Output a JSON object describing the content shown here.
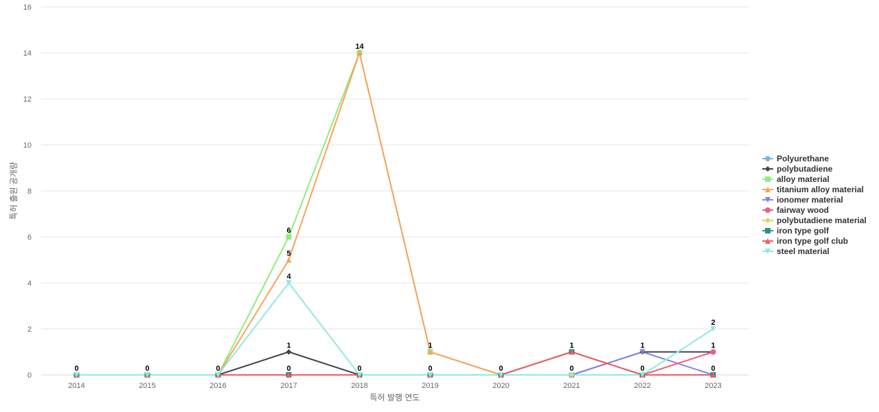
{
  "chart_data": {
    "type": "line",
    "xlabel": "특허 발행 연도",
    "ylabel": "특허 출원 공개량",
    "ylim": [
      0,
      16
    ],
    "yticks": [
      0,
      2,
      4,
      6,
      8,
      10,
      12,
      14,
      16
    ],
    "grid": true,
    "legend_position": "right",
    "categories": [
      "2014",
      "2015",
      "2016",
      "2017",
      "2018",
      "2019",
      "2020",
      "2021",
      "2022",
      "2023"
    ],
    "series": [
      {
        "name": "Polyurethane",
        "color": "#7cb5ec",
        "marker": "circle",
        "values": [
          0,
          0,
          0,
          0,
          0,
          0,
          0,
          0,
          0,
          0
        ]
      },
      {
        "name": "polybutadiene",
        "color": "#434348",
        "marker": "diamond",
        "values": [
          0,
          0,
          0,
          1,
          0,
          0,
          0,
          0,
          1,
          1
        ]
      },
      {
        "name": "alloy material",
        "color": "#90ed7d",
        "marker": "square",
        "values": [
          0,
          0,
          0,
          6,
          14,
          1,
          0,
          0,
          0,
          0
        ]
      },
      {
        "name": "titanium alloy material",
        "color": "#f7a35c",
        "marker": "triangle",
        "values": [
          0,
          0,
          0,
          5,
          14,
          1,
          0,
          0,
          0,
          0
        ]
      },
      {
        "name": "ionomer material",
        "color": "#8085e9",
        "marker": "triangle-down",
        "values": [
          0,
          0,
          0,
          0,
          0,
          0,
          0,
          0,
          1,
          0
        ]
      },
      {
        "name": "fairway wood",
        "color": "#f15c80",
        "marker": "circle",
        "values": [
          0,
          0,
          0,
          0,
          0,
          0,
          0,
          0,
          0,
          1
        ]
      },
      {
        "name": "polybutadiene material",
        "color": "#e4d354",
        "marker": "diamond",
        "values": [
          0,
          0,
          0,
          0,
          0,
          0,
          0,
          0,
          0,
          0
        ]
      },
      {
        "name": "iron type golf",
        "color": "#2b908f",
        "marker": "square",
        "values": [
          0,
          0,
          0,
          0,
          0,
          0,
          0,
          1,
          0,
          0
        ]
      },
      {
        "name": "iron type golf club",
        "color": "#f45b5b",
        "marker": "triangle",
        "values": [
          0,
          0,
          0,
          0,
          0,
          0,
          0,
          1,
          0,
          0
        ]
      },
      {
        "name": "steel material",
        "color": "#91e8e1",
        "marker": "triangle-down",
        "values": [
          0,
          0,
          0,
          4,
          0,
          0,
          0,
          0,
          0,
          2
        ]
      }
    ],
    "data_labels": [
      {
        "category": "2014",
        "text": "0",
        "value": 0
      },
      {
        "category": "2015",
        "text": "0",
        "value": 0
      },
      {
        "category": "2016",
        "text": "0",
        "value": 0
      },
      {
        "category": "2017",
        "text": "6",
        "value": 6
      },
      {
        "category": "2017",
        "text": "5",
        "value": 5
      },
      {
        "category": "2017",
        "text": "4",
        "value": 4
      },
      {
        "category": "2017",
        "text": "1",
        "value": 1
      },
      {
        "category": "2017",
        "text": "0",
        "value": 0
      },
      {
        "category": "2018",
        "text": "14",
        "value": 14
      },
      {
        "category": "2018",
        "text": "0",
        "value": 0
      },
      {
        "category": "2019",
        "text": "1",
        "value": 1
      },
      {
        "category": "2019",
        "text": "0",
        "value": 0
      },
      {
        "category": "2020",
        "text": "0",
        "value": 0
      },
      {
        "category": "2021",
        "text": "1",
        "value": 1
      },
      {
        "category": "2021",
        "text": "0",
        "value": 0
      },
      {
        "category": "2022",
        "text": "1",
        "value": 1
      },
      {
        "category": "2022",
        "text": "0",
        "value": 0
      },
      {
        "category": "2023",
        "text": "2",
        "value": 2
      },
      {
        "category": "2023",
        "text": "1",
        "value": 1
      },
      {
        "category": "2023",
        "text": "0",
        "value": 0
      }
    ]
  }
}
